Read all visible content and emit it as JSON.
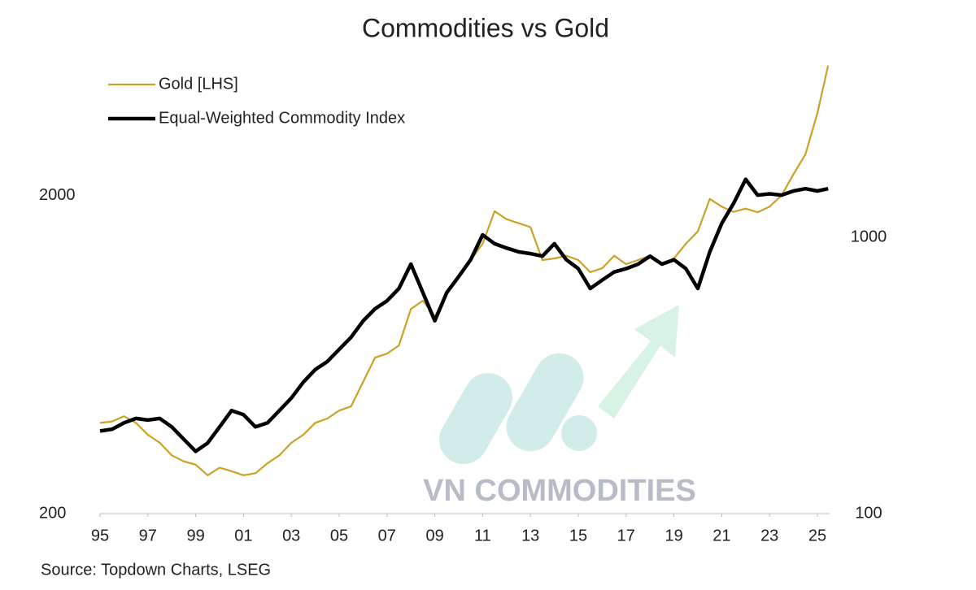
{
  "chart_data": {
    "type": "line",
    "title": "Commodities vs Gold",
    "source": "Source: Topdown Charts, LSEG",
    "watermark": "VN COMMODITIES",
    "log_scale": true,
    "legend": "top-left",
    "x": [
      1995,
      1995.5,
      1996,
      1996.5,
      1997,
      1997.5,
      1998,
      1998.5,
      1999,
      1999.5,
      2000,
      2000.5,
      2001,
      2001.5,
      2002,
      2002.5,
      2003,
      2003.5,
      2004,
      2004.5,
      2005,
      2005.5,
      2006,
      2006.5,
      2007,
      2007.5,
      2008,
      2008.5,
      2009,
      2009.5,
      2010,
      2010.5,
      2011,
      2011.5,
      2012,
      2012.5,
      2013,
      2013.5,
      2014,
      2014.5,
      2015,
      2015.5,
      2016,
      2016.5,
      2017,
      2017.5,
      2018,
      2018.5,
      2019,
      2019.5,
      2020,
      2020.5,
      2021,
      2021.5,
      2022,
      2022.5,
      2023,
      2023.5,
      2024,
      2024.5,
      2025,
      2025.45
    ],
    "series": [
      {
        "name": "Gold [LHS]",
        "color": "#c9a227",
        "values": [
          386,
          390,
          405,
          386,
          354,
          334,
          305,
          292,
          285,
          264,
          279,
          272,
          264,
          268,
          288,
          305,
          334,
          354,
          386,
          398,
          422,
          435,
          519,
          619,
          637,
          676,
          881,
          935,
          833,
          990,
          1115,
          1255,
          1413,
          1788,
          1688,
          1640,
          1593,
          1255,
          1270,
          1295,
          1255,
          1150,
          1183,
          1295,
          1219,
          1255,
          1295,
          1219,
          1270,
          1413,
          1545,
          1955,
          1848,
          1780,
          1822,
          1775,
          1848,
          2006,
          2339,
          2700,
          3640,
          5140
        ]
      },
      {
        "name": "Equal-Weighted Commodity Index",
        "color": "#000000",
        "axis": "y2",
        "values": [
          199,
          202,
          213,
          221,
          218,
          221,
          206,
          186,
          168,
          180,
          206,
          236,
          228,
          206,
          213,
          236,
          262,
          299,
          332,
          355,
          393,
          435,
          498,
          551,
          589,
          653,
          800,
          631,
          499,
          631,
          721,
          830,
          1021,
          948,
          915,
          886,
          873,
          855,
          948,
          830,
          770,
          653,
          700,
          749,
          770,
          800,
          855,
          800,
          830,
          770,
          653,
          886,
          1123,
          1330,
          1623,
          1422,
          1437,
          1422,
          1472,
          1500,
          1472,
          1500
        ]
      }
    ],
    "xlim": [
      1995,
      2026
    ],
    "xticks": [
      {
        "value": 1995,
        "label": "95"
      },
      {
        "value": 1997,
        "label": "97"
      },
      {
        "value": 1999,
        "label": "99"
      },
      {
        "value": 2001,
        "label": "01"
      },
      {
        "value": 2003,
        "label": "03"
      },
      {
        "value": 2005,
        "label": "05"
      },
      {
        "value": 2007,
        "label": "07"
      },
      {
        "value": 2009,
        "label": "09"
      },
      {
        "value": 2011,
        "label": "11"
      },
      {
        "value": 2013,
        "label": "13"
      },
      {
        "value": 2015,
        "label": "15"
      },
      {
        "value": 2017,
        "label": "17"
      },
      {
        "value": 2019,
        "label": "19"
      },
      {
        "value": 2021,
        "label": "21"
      },
      {
        "value": 2023,
        "label": "23"
      },
      {
        "value": 2025,
        "label": "25"
      }
    ],
    "ylim": [
      200,
      5470
    ],
    "yticks": [
      200,
      2000
    ],
    "y2lim": [
      100,
      4500
    ],
    "y2ticks": [
      100,
      1000
    ]
  }
}
